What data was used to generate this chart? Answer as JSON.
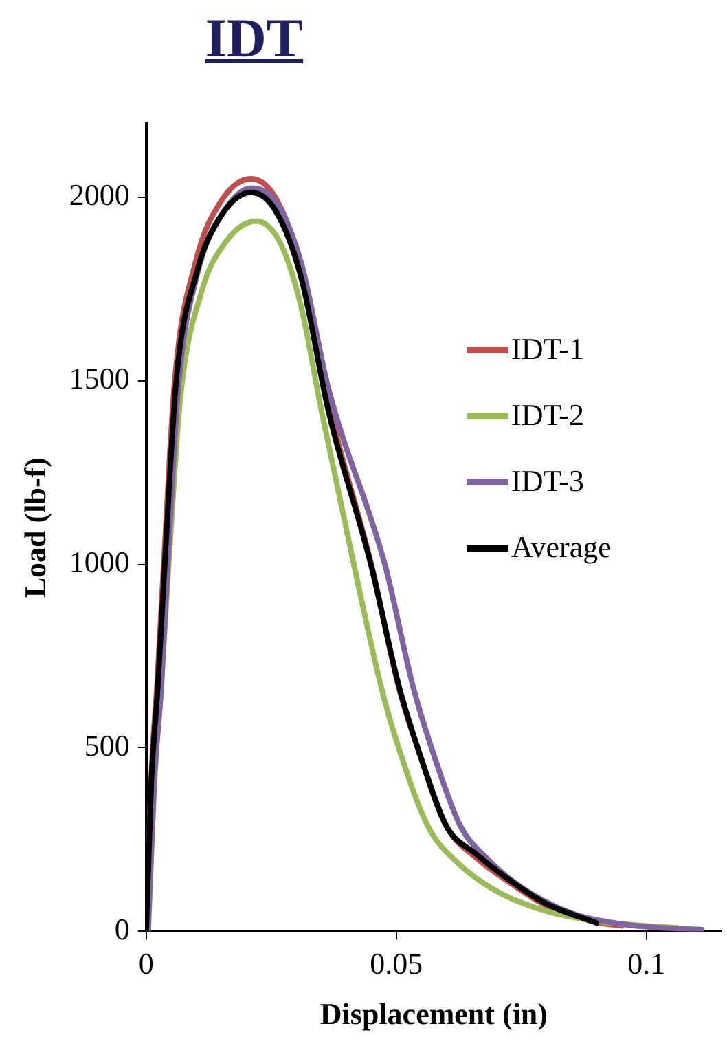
{
  "chart_data": {
    "type": "line",
    "title": "IDT",
    "xlabel": "Displacement (in)",
    "ylabel": "Load (lb-f)",
    "xlim": [
      0,
      0.115
    ],
    "xticks": [
      0,
      0.05,
      0.1
    ],
    "ylim": [
      0,
      2200
    ],
    "yticks": [
      0,
      500,
      1000,
      1500,
      2000
    ],
    "grid": false,
    "legend": "right",
    "marker": "none",
    "line_style": "solid",
    "series": [
      {
        "name": "IDT-1",
        "color": "#c0504d",
        "x": [
          0,
          0.001,
          0.0022,
          0.0035,
          0.0057,
          0.0098,
          0.015,
          0.021,
          0.026,
          0.031,
          0.0364,
          0.045,
          0.0505,
          0.055,
          0.06,
          0.066,
          0.073,
          0.08,
          0.09,
          0.095
        ],
        "values": [
          0,
          420,
          680,
          1000,
          1500,
          1820,
          1990,
          2050,
          1995,
          1810,
          1440,
          1000,
          664,
          470,
          287,
          200,
          130,
          70,
          25,
          15
        ]
      },
      {
        "name": "IDT-2",
        "color": "#9bbb59",
        "x": [
          0.003,
          0.0045,
          0.0068,
          0.011,
          0.016,
          0.022,
          0.027,
          0.031,
          0.035,
          0.0415,
          0.047,
          0.05,
          0.0563,
          0.062,
          0.07,
          0.08,
          0.09,
          0.1,
          0.106
        ],
        "values": [
          664,
          1000,
          1450,
          1740,
          1880,
          1935,
          1870,
          1700,
          1420,
          1000,
          664,
          520,
          287,
          190,
          110,
          55,
          28,
          15,
          10
        ]
      },
      {
        "name": "IDT-3",
        "color": "#8064a2",
        "x": [
          0.0004,
          0.0016,
          0.003,
          0.0043,
          0.0064,
          0.0102,
          0.015,
          0.021,
          0.026,
          0.031,
          0.0364,
          0.0477,
          0.0534,
          0.058,
          0.0628,
          0.068,
          0.075,
          0.085,
          0.095,
          0.105,
          0.111
        ],
        "values": [
          0,
          400,
          664,
          1000,
          1480,
          1790,
          1950,
          2025,
          1985,
          1820,
          1480,
          1000,
          664,
          460,
          287,
          200,
          120,
          50,
          20,
          8,
          5
        ]
      },
      {
        "name": "Average",
        "color": "#000000",
        "x": [
          0,
          0.001,
          0.0023,
          0.0037,
          0.006,
          0.0102,
          0.015,
          0.021,
          0.026,
          0.031,
          0.0364,
          0.0449,
          0.0506,
          0.055,
          0.06,
          0.066,
          0.073,
          0.08,
          0.09
        ],
        "values": [
          0,
          400,
          664,
          1000,
          1500,
          1800,
          1950,
          2013,
          1960,
          1780,
          1419,
          1000,
          664,
          470,
          287,
          210,
          136,
          75,
          23
        ]
      }
    ]
  }
}
